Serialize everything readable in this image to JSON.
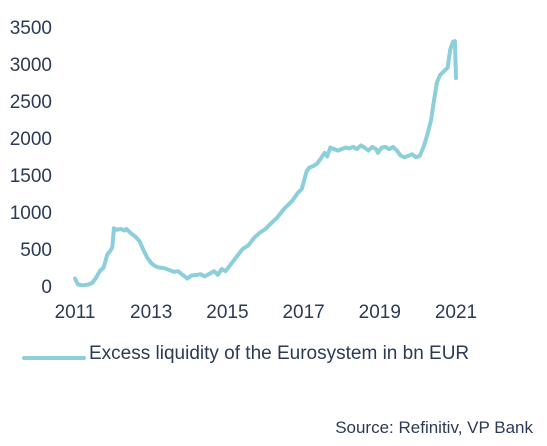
{
  "chart_data": {
    "type": "line",
    "title": "",
    "xlabel": "",
    "ylabel": "",
    "xlim": [
      2011.0,
      2021.0
    ],
    "ylim": [
      0,
      3500
    ],
    "x_ticks": [
      "2011",
      "2013",
      "2015",
      "2017",
      "2019",
      "2021"
    ],
    "y_ticks": [
      "0",
      "500",
      "1000",
      "1500",
      "2000",
      "2500",
      "3000",
      "3500"
    ],
    "grid": false,
    "legend_position": "bottom-left",
    "series": [
      {
        "name": "Excess liquidity of the Eurosystem in bn EUR",
        "color": "#8ccfdb",
        "points": [
          [
            2011.0,
            100
          ],
          [
            2011.08,
            20
          ],
          [
            2011.2,
            10
          ],
          [
            2011.35,
            20
          ],
          [
            2011.45,
            40
          ],
          [
            2011.55,
            110
          ],
          [
            2011.65,
            200
          ],
          [
            2011.75,
            250
          ],
          [
            2011.85,
            430
          ],
          [
            2011.92,
            470
          ],
          [
            2011.98,
            520
          ],
          [
            2012.02,
            780
          ],
          [
            2012.1,
            760
          ],
          [
            2012.2,
            770
          ],
          [
            2012.3,
            750
          ],
          [
            2012.35,
            770
          ],
          [
            2012.45,
            720
          ],
          [
            2012.6,
            660
          ],
          [
            2012.7,
            600
          ],
          [
            2012.8,
            480
          ],
          [
            2012.9,
            380
          ],
          [
            2013.0,
            310
          ],
          [
            2013.1,
            270
          ],
          [
            2013.2,
            250
          ],
          [
            2013.35,
            240
          ],
          [
            2013.45,
            220
          ],
          [
            2013.6,
            190
          ],
          [
            2013.7,
            200
          ],
          [
            2013.85,
            140
          ],
          [
            2013.95,
            100
          ],
          [
            2014.05,
            140
          ],
          [
            2014.2,
            150
          ],
          [
            2014.3,
            160
          ],
          [
            2014.4,
            130
          ],
          [
            2014.55,
            170
          ],
          [
            2014.65,
            200
          ],
          [
            2014.75,
            150
          ],
          [
            2014.85,
            230
          ],
          [
            2014.95,
            200
          ],
          [
            2015.1,
            300
          ],
          [
            2015.25,
            400
          ],
          [
            2015.4,
            500
          ],
          [
            2015.55,
            550
          ],
          [
            2015.7,
            650
          ],
          [
            2015.85,
            720
          ],
          [
            2016.0,
            770
          ],
          [
            2016.15,
            850
          ],
          [
            2016.3,
            920
          ],
          [
            2016.5,
            1050
          ],
          [
            2016.7,
            1150
          ],
          [
            2016.85,
            1260
          ],
          [
            2016.95,
            1310
          ],
          [
            2017.0,
            1400
          ],
          [
            2017.08,
            1550
          ],
          [
            2017.15,
            1600
          ],
          [
            2017.25,
            1620
          ],
          [
            2017.35,
            1650
          ],
          [
            2017.45,
            1720
          ],
          [
            2017.55,
            1800
          ],
          [
            2017.62,
            1750
          ],
          [
            2017.7,
            1870
          ],
          [
            2017.8,
            1850
          ],
          [
            2017.9,
            1830
          ],
          [
            2018.0,
            1850
          ],
          [
            2018.1,
            1870
          ],
          [
            2018.2,
            1860
          ],
          [
            2018.3,
            1880
          ],
          [
            2018.4,
            1850
          ],
          [
            2018.5,
            1900
          ],
          [
            2018.6,
            1870
          ],
          [
            2018.7,
            1830
          ],
          [
            2018.8,
            1880
          ],
          [
            2018.9,
            1850
          ],
          [
            2018.95,
            1800
          ],
          [
            2019.05,
            1870
          ],
          [
            2019.15,
            1880
          ],
          [
            2019.25,
            1850
          ],
          [
            2019.35,
            1880
          ],
          [
            2019.45,
            1830
          ],
          [
            2019.55,
            1760
          ],
          [
            2019.65,
            1740
          ],
          [
            2019.75,
            1760
          ],
          [
            2019.85,
            1780
          ],
          [
            2019.95,
            1740
          ],
          [
            2020.05,
            1760
          ],
          [
            2020.15,
            1880
          ],
          [
            2020.25,
            2050
          ],
          [
            2020.35,
            2250
          ],
          [
            2020.42,
            2500
          ],
          [
            2020.5,
            2750
          ],
          [
            2020.58,
            2850
          ],
          [
            2020.68,
            2900
          ],
          [
            2020.78,
            2950
          ],
          [
            2020.85,
            3200
          ],
          [
            2020.92,
            3300
          ],
          [
            2020.97,
            3310
          ],
          [
            2021.0,
            2810
          ]
        ]
      }
    ],
    "source": "Source: Refinitiv, VP Bank"
  }
}
